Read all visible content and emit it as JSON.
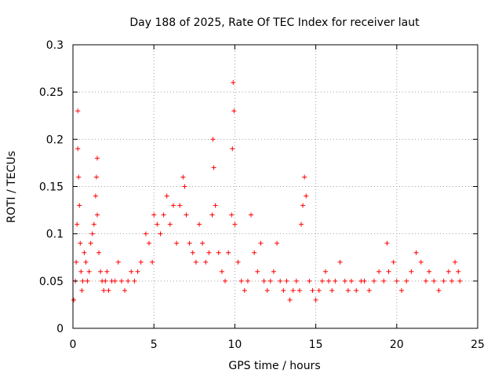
{
  "chart_data": {
    "type": "scatter",
    "title": "Day 188 of 2025, Rate Of TEC Index for receiver laut",
    "xlabel": "GPS time / hours",
    "ylabel": "ROTI / TECUs",
    "xlim": [
      0,
      25
    ],
    "ylim": [
      0,
      0.3
    ],
    "xticks": [
      0,
      5,
      10,
      15,
      20,
      25
    ],
    "xtick_labels": [
      "0",
      "5",
      "10",
      "15",
      "20",
      "25"
    ],
    "yticks": [
      0,
      0.05,
      0.1,
      0.15,
      0.2,
      0.25,
      0.3
    ],
    "ytick_labels": [
      "0",
      "0.05",
      "0.1",
      "0.15",
      "0.2",
      "0.25",
      "0.3"
    ],
    "grid": true,
    "marker": "+",
    "series": [
      {
        "name": "ROTI",
        "color": "#ff0000",
        "x": [
          0.05,
          0.15,
          0.2,
          0.25,
          0.3,
          0.3,
          0.35,
          0.4,
          0.45,
          0.5,
          0.55,
          0.6,
          0.7,
          0.8,
          0.9,
          1.0,
          1.1,
          1.2,
          1.3,
          1.4,
          1.45,
          1.5,
          1.5,
          1.6,
          1.7,
          1.8,
          1.9,
          2.0,
          2.1,
          2.2,
          2.4,
          2.6,
          2.8,
          3.0,
          3.2,
          3.4,
          3.6,
          3.8,
          4.0,
          4.2,
          4.5,
          4.7,
          4.9,
          5.0,
          5.2,
          5.4,
          5.6,
          5.8,
          6.0,
          6.2,
          6.4,
          6.6,
          6.8,
          6.9,
          7.0,
          7.2,
          7.4,
          7.6,
          7.8,
          8.0,
          8.2,
          8.4,
          8.6,
          8.65,
          8.7,
          8.8,
          9.0,
          9.2,
          9.4,
          9.6,
          9.8,
          9.85,
          9.9,
          9.95,
          10.0,
          10.2,
          10.4,
          10.6,
          10.8,
          11.0,
          11.2,
          11.4,
          11.6,
          11.8,
          12.0,
          12.2,
          12.4,
          12.6,
          12.8,
          13.0,
          13.2,
          13.4,
          13.6,
          13.8,
          14.0,
          14.1,
          14.2,
          14.3,
          14.4,
          14.6,
          14.8,
          15.0,
          15.2,
          15.4,
          15.6,
          15.8,
          16.0,
          16.2,
          16.5,
          16.8,
          17.0,
          17.2,
          17.5,
          17.8,
          18.0,
          18.3,
          18.6,
          18.9,
          19.2,
          19.4,
          19.5,
          19.8,
          20.0,
          20.3,
          20.6,
          20.9,
          21.2,
          21.5,
          21.8,
          22.0,
          22.3,
          22.6,
          22.9,
          23.2,
          23.4,
          23.6,
          23.8,
          23.9
        ],
        "y": [
          0.03,
          0.05,
          0.07,
          0.11,
          0.23,
          0.19,
          0.16,
          0.13,
          0.09,
          0.06,
          0.04,
          0.05,
          0.08,
          0.07,
          0.05,
          0.06,
          0.09,
          0.1,
          0.11,
          0.14,
          0.16,
          0.18,
          0.12,
          0.08,
          0.06,
          0.05,
          0.04,
          0.05,
          0.06,
          0.04,
          0.05,
          0.05,
          0.07,
          0.05,
          0.04,
          0.05,
          0.06,
          0.05,
          0.06,
          0.07,
          0.1,
          0.09,
          0.07,
          0.12,
          0.11,
          0.1,
          0.12,
          0.14,
          0.11,
          0.13,
          0.09,
          0.13,
          0.16,
          0.15,
          0.12,
          0.09,
          0.08,
          0.07,
          0.11,
          0.09,
          0.07,
          0.08,
          0.12,
          0.2,
          0.17,
          0.13,
          0.08,
          0.06,
          0.05,
          0.08,
          0.12,
          0.19,
          0.26,
          0.23,
          0.11,
          0.07,
          0.05,
          0.04,
          0.05,
          0.12,
          0.08,
          0.06,
          0.09,
          0.05,
          0.04,
          0.05,
          0.06,
          0.09,
          0.05,
          0.04,
          0.05,
          0.03,
          0.04,
          0.05,
          0.04,
          0.11,
          0.13,
          0.16,
          0.14,
          0.05,
          0.04,
          0.03,
          0.04,
          0.05,
          0.06,
          0.05,
          0.04,
          0.05,
          0.07,
          0.05,
          0.04,
          0.05,
          0.04,
          0.05,
          0.05,
          0.04,
          0.05,
          0.06,
          0.05,
          0.09,
          0.06,
          0.07,
          0.05,
          0.04,
          0.05,
          0.06,
          0.08,
          0.07,
          0.05,
          0.06,
          0.05,
          0.04,
          0.05,
          0.06,
          0.05,
          0.07,
          0.06,
          0.05
        ]
      }
    ]
  }
}
